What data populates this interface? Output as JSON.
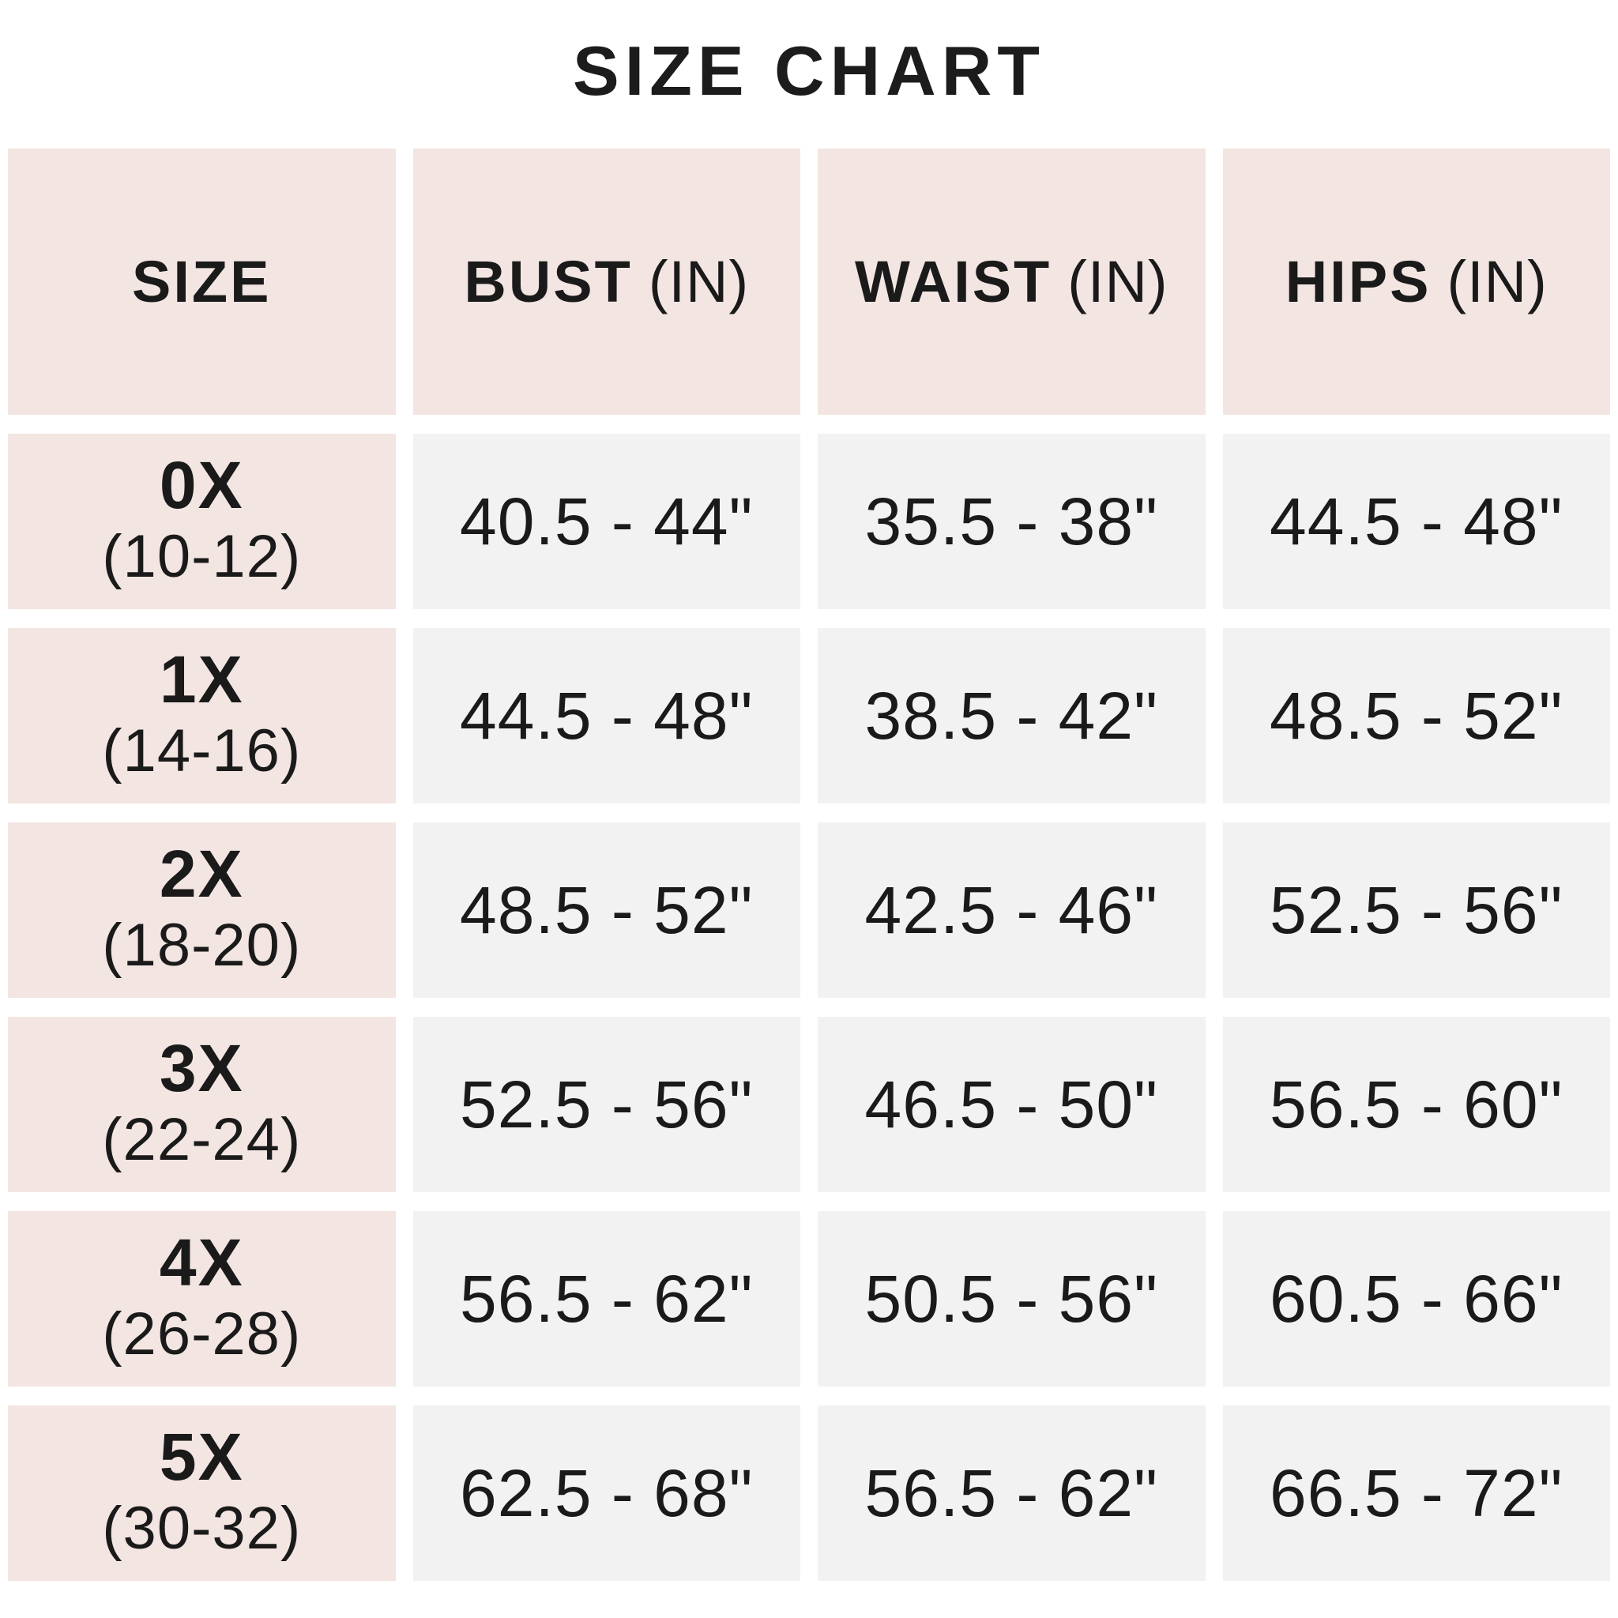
{
  "title": "SIZE CHART",
  "colors": {
    "header_bg": "#f3e5e1",
    "cell_bg": "#f2f2f2",
    "text": "#1a1a1a",
    "background": "#ffffff"
  },
  "table": {
    "headers": {
      "size": "SIZE",
      "bust": "BUST",
      "waist": "WAIST",
      "hips": "HIPS",
      "unit": "(IN)"
    },
    "rows": [
      {
        "size": "0X",
        "size_range": "(10-12)",
        "bust": "40.5 - 44\"",
        "waist": "35.5 - 38\"",
        "hips": "44.5 - 48\""
      },
      {
        "size": "1X",
        "size_range": "(14-16)",
        "bust": "44.5 - 48\"",
        "waist": "38.5 - 42\"",
        "hips": "48.5 - 52\""
      },
      {
        "size": "2X",
        "size_range": "(18-20)",
        "bust": "48.5 - 52\"",
        "waist": "42.5 - 46\"",
        "hips": "52.5 - 56\""
      },
      {
        "size": "3X",
        "size_range": "(22-24)",
        "bust": "52.5 - 56\"",
        "waist": "46.5 - 50\"",
        "hips": "56.5 - 60\""
      },
      {
        "size": "4X",
        "size_range": "(26-28)",
        "bust": "56.5 - 62\"",
        "waist": "50.5 - 56\"",
        "hips": "60.5 - 66\""
      },
      {
        "size": "5X",
        "size_range": "(30-32)",
        "bust": "62.5 - 68\"",
        "waist": "56.5 - 62\"",
        "hips": "66.5 - 72\""
      }
    ]
  },
  "chart_data": {
    "type": "table",
    "title": "SIZE CHART",
    "columns": [
      "SIZE",
      "BUST (IN)",
      "WAIST (IN)",
      "HIPS (IN)"
    ],
    "rows": [
      [
        "0X (10-12)",
        "40.5 - 44\"",
        "35.5 - 38\"",
        "44.5 - 48\""
      ],
      [
        "1X (14-16)",
        "44.5 - 48\"",
        "38.5 - 42\"",
        "48.5 - 52\""
      ],
      [
        "2X (18-20)",
        "48.5 - 52\"",
        "42.5 - 46\"",
        "52.5 - 56\""
      ],
      [
        "3X (22-24)",
        "52.5 - 56\"",
        "46.5 - 50\"",
        "56.5 - 60\""
      ],
      [
        "4X (26-28)",
        "56.5 - 62\"",
        "50.5 - 56\"",
        "60.5 - 66\""
      ],
      [
        "5X (30-32)",
        "62.5 - 68\"",
        "56.5 - 62\"",
        "66.5 - 72\""
      ]
    ]
  }
}
